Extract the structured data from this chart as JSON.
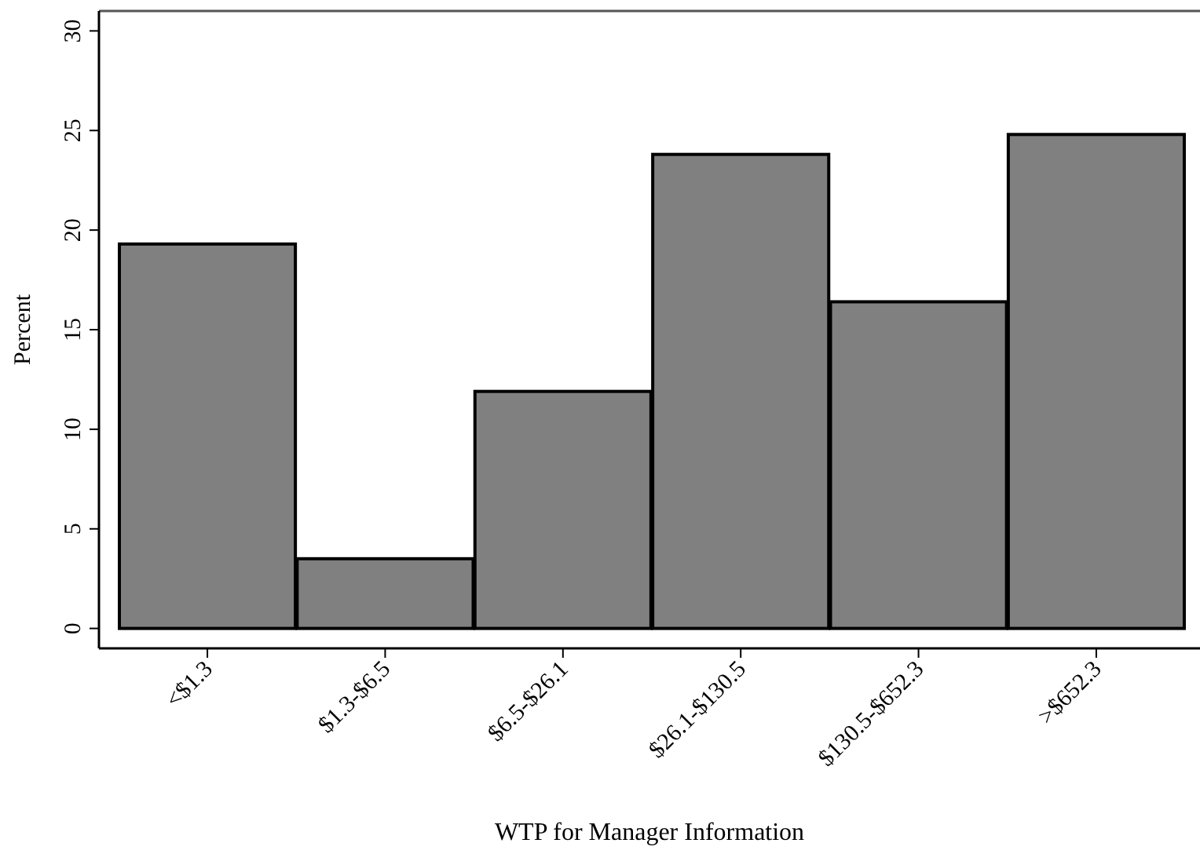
{
  "chart_data": {
    "type": "bar",
    "xlabel": "WTP for Manager Information",
    "ylabel": "Percent",
    "categories": [
      "<$1.3",
      "$1.3-$6.5",
      "$6.5-$26.1",
      "$26.1-$130.5",
      "$130.5-$652.3",
      ">$652.3"
    ],
    "values": [
      19.3,
      3.5,
      11.9,
      23.8,
      16.4,
      24.8
    ],
    "color": "#808080",
    "ylim": [
      -1,
      31
    ],
    "yticks": [
      0,
      5,
      10,
      15,
      20,
      25,
      30
    ],
    "grid": false
  }
}
